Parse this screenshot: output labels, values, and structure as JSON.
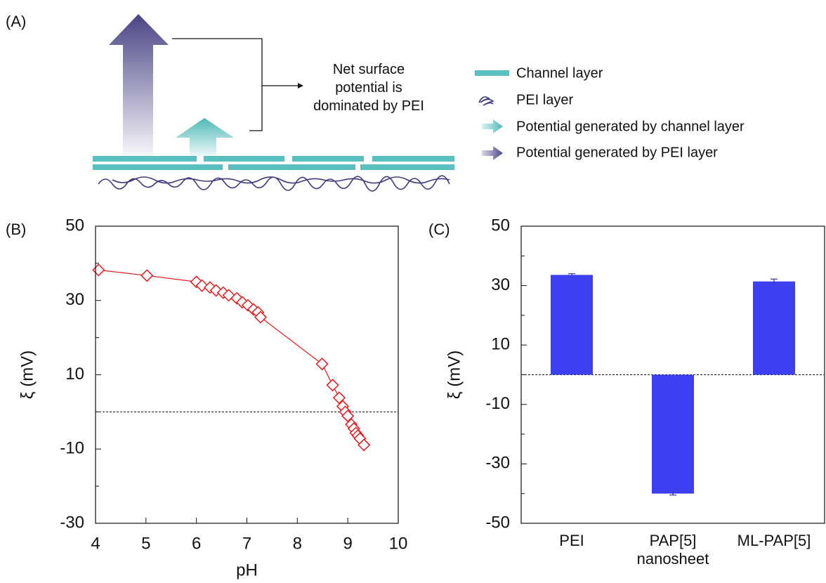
{
  "diagram": {
    "label": "(A)",
    "annotation": "Net surface\npotential is\ndominated by PEI",
    "legend": [
      "Channel layer",
      "PEI layer",
      "Potential generated by channel layer",
      "Potential generated by PEI layer"
    ]
  },
  "chart_data": [
    {
      "type": "line",
      "label": "(B)",
      "xlabel": "pH",
      "ylabel": "ξ (mV)",
      "x": [
        4.06,
        5.02,
        6.0,
        6.11,
        6.27,
        6.39,
        6.53,
        6.64,
        6.8,
        6.91,
        7.02,
        7.13,
        7.22,
        7.27,
        8.49,
        8.7,
        8.83,
        8.9,
        8.95,
        9.0,
        9.07,
        9.12,
        9.16,
        9.2,
        9.24,
        9.32
      ],
      "series": [
        {
          "color": "#e41a1c",
          "values": [
            38.2,
            36.7,
            35.0,
            34.0,
            33.5,
            32.7,
            32.1,
            31.4,
            30.6,
            29.5,
            28.7,
            27.6,
            26.8,
            25.5,
            12.9,
            7.2,
            3.8,
            1.5,
            0,
            -1.1,
            -3.4,
            -4.5,
            -5.7,
            -6.4,
            -7.2,
            -8.9
          ]
        }
      ],
      "xlim": [
        4,
        10
      ],
      "xticks": [
        4,
        5,
        6,
        7,
        8,
        9,
        10
      ],
      "ylim": [
        -30,
        50
      ],
      "yticks": [
        -30,
        -10,
        10,
        30,
        50
      ],
      "minor_yticks": [
        -20,
        0,
        20,
        40
      ],
      "reference_line": 0
    },
    {
      "type": "bar",
      "label": "(C)",
      "ylabel": "ξ (mV)",
      "categories": [
        "PEI",
        "PAP[5]\nnanosheet",
        "ML-PAP[5]"
      ],
      "values": [
        33.6,
        -40,
        31.4
      ],
      "errors": [
        0.4,
        0.5,
        0.8
      ],
      "color": "#3f3ff2",
      "ylim": [
        -50,
        50
      ],
      "yticks": [
        -50,
        -30,
        -10,
        10,
        30,
        50
      ],
      "minor_yticks": [
        -40,
        -20,
        0,
        20,
        40
      ],
      "reference_line": 0
    }
  ]
}
